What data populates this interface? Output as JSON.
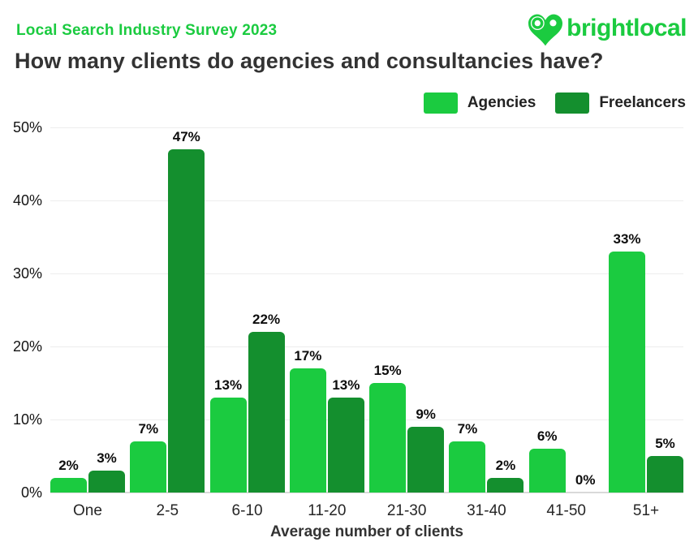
{
  "header": {
    "eyebrow": "Local Search Industry Survey 2023",
    "title": "How many clients do agencies and consultancies have?"
  },
  "logo": {
    "text": "brightlocal"
  },
  "colors": {
    "brand_green": "#1bcb40",
    "dark_green": "#148f2e",
    "title_text": "#333333",
    "grid_line": "#ededed",
    "axis_line": "#d9d9d9"
  },
  "chart_data": {
    "type": "bar",
    "title": "How many clients do agencies and consultancies have?",
    "subtitle": "Local Search Industry Survey 2023",
    "categories": [
      "One",
      "2-5",
      "6-10",
      "11-20",
      "21-30",
      "31-40",
      "41-50",
      "51+"
    ],
    "series": [
      {
        "name": "Agencies",
        "color": "#1bcb40",
        "values": [
          2,
          7,
          13,
          17,
          15,
          7,
          6,
          33
        ]
      },
      {
        "name": "Freelancers",
        "color": "#148f2e",
        "values": [
          3,
          47,
          22,
          13,
          9,
          2,
          0,
          5
        ]
      }
    ],
    "xlabel": "Average number of clients",
    "ylabel": "",
    "ylim": [
      0,
      50
    ],
    "ytick_step": 10,
    "ytick_labels": [
      "0%",
      "10%",
      "20%",
      "30%",
      "40%",
      "50%"
    ],
    "grid": true,
    "legend_position": "top-right",
    "value_label_suffix": "%"
  }
}
